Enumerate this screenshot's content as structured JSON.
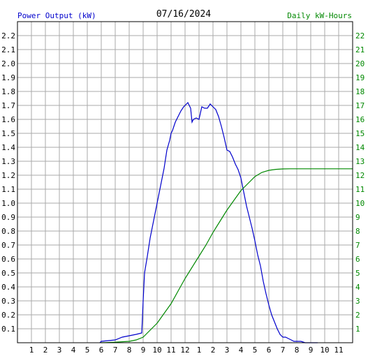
{
  "chart_data": {
    "type": "line",
    "title": "07/16/2024",
    "left_axis_label": "Power Output (kW)",
    "right_axis_label": "Daily kW-Hours",
    "x_tick_labels": [
      "1",
      "2",
      "3",
      "4",
      "5",
      "6",
      "7",
      "8",
      "9",
      "10",
      "11",
      "12",
      "1",
      "2",
      "3",
      "4",
      "5",
      "6",
      "7",
      "8",
      "9",
      "10",
      "11"
    ],
    "xlim": [
      0,
      24
    ],
    "ylim_left": [
      0,
      2.3
    ],
    "ylim_right": [
      0,
      23
    ],
    "y_left_ticks": [
      "0.1",
      "0.2",
      "0.3",
      "0.4",
      "0.5",
      "0.6",
      "0.7",
      "0.8",
      "0.9",
      "1.0",
      "1.1",
      "1.2",
      "1.3",
      "1.4",
      "1.5",
      "1.6",
      "1.7",
      "1.8",
      "1.9",
      "2.0",
      "2.1",
      "2.2"
    ],
    "y_right_ticks": [
      "1",
      "2",
      "3",
      "4",
      "5",
      "6",
      "7",
      "8",
      "9",
      "10",
      "11",
      "12",
      "13",
      "14",
      "15",
      "16",
      "17",
      "18",
      "19",
      "20",
      "21",
      "22"
    ],
    "grid": true,
    "colors": {
      "power": "#0000cc",
      "energy": "#008800",
      "grid": "#aaaaaa"
    },
    "series": [
      {
        "axis": "left",
        "x": [
          5.9,
          6.0,
          7.0,
          7.5,
          8.0,
          8.5,
          8.9,
          9.0,
          9.1,
          9.3,
          9.5,
          9.7,
          10.0,
          10.2,
          10.5,
          10.7,
          10.9,
          11.0,
          11.1,
          11.2,
          11.3,
          11.5,
          11.7,
          11.9,
          12.0,
          12.2,
          12.4,
          12.5,
          12.6,
          12.8,
          13.0,
          13.2,
          13.4,
          13.6,
          13.8,
          14.0,
          14.2,
          14.4,
          14.6,
          14.8,
          15.0,
          15.2,
          15.4,
          15.6,
          15.8,
          16.0,
          16.2,
          16.4,
          16.6,
          16.8,
          17.0,
          17.2,
          17.4,
          17.6,
          17.8,
          18.0,
          18.2,
          18.4,
          18.6,
          18.8,
          19.0,
          19.2,
          19.4,
          19.6,
          19.8,
          20.0,
          20.3,
          20.6,
          20.8,
          21.0,
          21.5
        ],
        "y": [
          0.0,
          0.01,
          0.02,
          0.04,
          0.05,
          0.06,
          0.07,
          0.3,
          0.5,
          0.62,
          0.75,
          0.85,
          1.0,
          1.1,
          1.25,
          1.38,
          1.45,
          1.5,
          1.52,
          1.55,
          1.58,
          1.62,
          1.66,
          1.69,
          1.7,
          1.72,
          1.68,
          1.58,
          1.6,
          1.61,
          1.6,
          1.69,
          1.68,
          1.68,
          1.71,
          1.69,
          1.67,
          1.62,
          1.55,
          1.47,
          1.38,
          1.37,
          1.33,
          1.28,
          1.24,
          1.18,
          1.08,
          0.98,
          0.9,
          0.82,
          0.73,
          0.63,
          0.55,
          0.44,
          0.35,
          0.27,
          0.2,
          0.15,
          0.1,
          0.06,
          0.04,
          0.04,
          0.03,
          0.02,
          0.01,
          0.01,
          0.01,
          0.0,
          0.0,
          0.0,
          0.0
        ]
      },
      {
        "axis": "right",
        "x": [
          6.0,
          7.0,
          8.0,
          8.5,
          9.0,
          9.5,
          10.0,
          10.5,
          11.0,
          11.5,
          12.0,
          12.5,
          13.0,
          13.5,
          14.0,
          14.5,
          15.0,
          15.5,
          16.0,
          16.5,
          17.0,
          17.5,
          18.0,
          18.5,
          19.0,
          19.5,
          20.0,
          21.0,
          22.0,
          23.0,
          24.0
        ],
        "y": [
          0.0,
          0.04,
          0.1,
          0.2,
          0.4,
          0.9,
          1.4,
          2.1,
          2.8,
          3.7,
          4.6,
          5.4,
          6.2,
          7.0,
          7.9,
          8.7,
          9.5,
          10.2,
          10.9,
          11.4,
          11.9,
          12.2,
          12.35,
          12.42,
          12.45,
          12.46,
          12.46,
          12.46,
          12.46,
          12.46,
          12.46
        ]
      }
    ]
  }
}
